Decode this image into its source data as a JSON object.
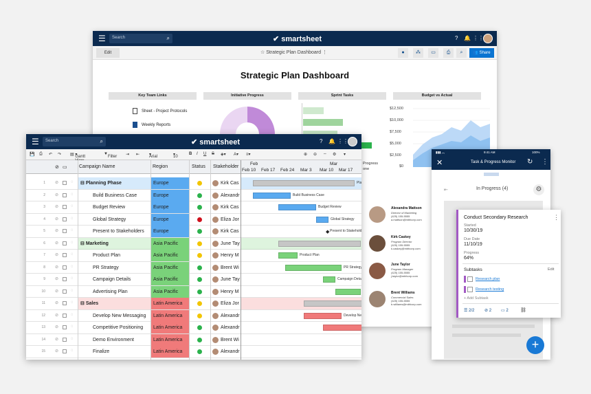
{
  "dashboard": {
    "search_placeholder": "Search",
    "logo": "smartsheet",
    "edit_label": "Edit",
    "title": "Strategic Plan Dashboard",
    "share_label": "Share",
    "heading": "Strategic Plan Dashboard",
    "sections": [
      "Key Team Links",
      "Initiative Progress",
      "Sprint Tasks",
      "Budget vs Actual"
    ],
    "links": [
      "Sheet - Project Protocols",
      "Weekly Reports"
    ],
    "budget_ticks": [
      "$12,500",
      "$10,000",
      "$7,500",
      "$5,000",
      "$2,500",
      "$0"
    ],
    "sprint_partial_labels": [
      "Progress",
      "one"
    ],
    "people": [
      {
        "name": "Alexandra Mattson",
        "role": "Director of Marketing",
        "phone": "(425) 155-5555",
        "email": "a.mattson@mbfcorp.com"
      },
      {
        "name": "Kirk Caskey",
        "role": "Program Director",
        "phone": "(425) 155-5555",
        "email": "k.caskey@mbfcorp.com"
      },
      {
        "name": "June Taylor",
        "role": "Program Manager",
        "phone": "(425) 155-5555",
        "email": "j.taylor@mbfcorp.com"
      },
      {
        "name": "Brent Williams",
        "role": "Commercial Sales",
        "phone": "(425) 155-5555",
        "email": "b.williams@mbfcorp.com"
      }
    ]
  },
  "sheet": {
    "search_placeholder": "Search",
    "logo": "smartsheet",
    "toolbar": {
      "view": "Gantt View",
      "filter": "Filter",
      "font": "Arial",
      "size": "10"
    },
    "columns": {
      "name": "Campaign Name",
      "region": "Region",
      "status": "Status",
      "stakeholder": "Stakeholder"
    },
    "months": [
      "Feb",
      "Mar"
    ],
    "weeks": [
      "Feb 10",
      "Feb 17",
      "Feb 24",
      "Mar 3",
      "Mar 10",
      "Mar 17"
    ],
    "rows": [
      {
        "num": "1",
        "name": "Planning Phase",
        "group": true,
        "region": "Europe",
        "color": "#5aaaf0",
        "status": "#f2c500",
        "who": "Kirk Cas",
        "bar": [
          8,
          148
        ],
        "bar_color": "#c6c6c6",
        "label": "Plannin"
      },
      {
        "num": "2",
        "name": "Build Business Case",
        "region": "Europe",
        "color": "#5aaaf0",
        "status": "#2bb24c",
        "who": "Alexandr",
        "bar": [
          8,
          55
        ],
        "bar_color": "#5aaaf0",
        "label": "Build Business Case"
      },
      {
        "num": "3",
        "name": "Budget Review",
        "region": "Europe",
        "color": "#5aaaf0",
        "status": "#2bb24c",
        "who": "Kirk Cas",
        "bar": [
          45,
          55
        ],
        "bar_color": "#5aaaf0",
        "label": "Budget Review"
      },
      {
        "num": "4",
        "name": "Global Strategy",
        "region": "Europe",
        "color": "#5aaaf0",
        "status": "#d0101c",
        "who": "Eliza Jor",
        "bar": [
          100,
          18
        ],
        "bar_color": "#5aaaf0",
        "label": "Global Strategy"
      },
      {
        "num": "5",
        "name": "Present to Stakeholders",
        "region": "Europe",
        "color": "#5aaaf0",
        "status": "#2bb24c",
        "who": "Kirk Cas",
        "bar": [
          117,
          0
        ],
        "bar_color": "#444",
        "label": "Present to Stakeholder"
      },
      {
        "num": "6",
        "name": "Marketing",
        "group": true,
        "region": "Asia Pacific",
        "color": "#7ad27a",
        "status": "#f2c500",
        "who": "June Tay",
        "bar": [
          45,
          120
        ],
        "bar_color": "#c6c6c6",
        "label": "Ma"
      },
      {
        "num": "7",
        "name": "Product Plan",
        "region": "Asia Pacific",
        "color": "#7ad27a",
        "status": "#f2c500",
        "who": "Henry M",
        "bar": [
          45,
          28
        ],
        "bar_color": "#7ad27a",
        "label": "Product Plan"
      },
      {
        "num": "8",
        "name": "PR Strategy",
        "region": "Asia Pacific",
        "color": "#7ad27a",
        "status": "#2bb24c",
        "who": "Brent Wi",
        "bar": [
          55,
          82
        ],
        "bar_color": "#7ad27a",
        "label": "PR Strategy"
      },
      {
        "num": "9",
        "name": "Campaign Details",
        "region": "Asia Pacific",
        "color": "#7ad27a",
        "status": "#2bb24c",
        "who": "June Tay",
        "bar": [
          110,
          18
        ],
        "bar_color": "#7ad27a",
        "label": "Campaign Details"
      },
      {
        "num": "10",
        "name": "Advertising Plan",
        "region": "Asia Pacific",
        "color": "#7ad27a",
        "status": "#2bb24c",
        "who": "Henry M",
        "bar": [
          128,
          37
        ],
        "bar_color": "#7ad27a",
        "label": "Adv"
      },
      {
        "num": "11",
        "name": "Sales",
        "group": true,
        "region": "Latin America",
        "color": "#f07a7a",
        "status": "#f2c500",
        "who": "Eliza Jor",
        "bar": [
          82,
          93
        ],
        "bar_color": "#c6c6c6",
        "label": ""
      },
      {
        "num": "12",
        "name": "Develop New Messaging",
        "region": "Latin America",
        "color": "#f07a7a",
        "status": "#f2c500",
        "who": "Alexandr",
        "bar": [
          82,
          55
        ],
        "bar_color": "#f07a7a",
        "label": "Develop New M"
      },
      {
        "num": "13",
        "name": "Competitive Positioning",
        "region": "Latin America",
        "color": "#f07a7a",
        "status": "#2bb24c",
        "who": "Alexandr",
        "bar": [
          110,
          65
        ],
        "bar_color": "#f07a7a",
        "label": ""
      },
      {
        "num": "14",
        "name": "Demo Environment",
        "region": "Latin America",
        "color": "#f07a7a",
        "status": "#2bb24c",
        "who": "Brent Wi",
        "bar": [
          0,
          0
        ],
        "bar_color": "#f07a7a",
        "label": ""
      },
      {
        "num": "15",
        "name": "Finalize",
        "region": "Latin America",
        "color": "#f07a7a",
        "status": "#2bb24c",
        "who": "Alexandr",
        "bar": [
          0,
          0
        ],
        "bar_color": "#f07a7a",
        "label": ""
      }
    ]
  },
  "mobile": {
    "time": "9:41 AM",
    "battery": "100%",
    "title": "Task & Progress Monitor",
    "column": "In Progress (4)",
    "card": {
      "title": "Conduct Secondary Research",
      "started_label": "Started",
      "started": "10/30/19",
      "due_label": "Due Date",
      "due": "11/10/19",
      "progress_label": "Progress",
      "progress": "64%",
      "subtasks_label": "Subtasks",
      "edit": "Edit",
      "subtasks": [
        "Research plan",
        "Research testing"
      ],
      "add": "+ Add Subtask",
      "count_subtasks": "2/2",
      "count_attach": "2",
      "count_comments": "2"
    }
  }
}
